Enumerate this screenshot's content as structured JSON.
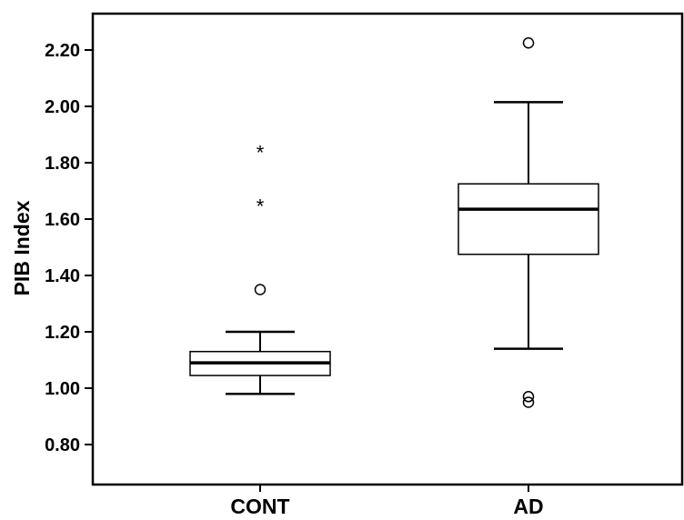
{
  "chart_data": {
    "type": "boxplot",
    "title": "",
    "xlabel": "",
    "ylabel": "PIB Index",
    "ylim": [
      0.7,
      2.3
    ],
    "yticks": [
      0.8,
      1.0,
      1.2,
      1.4,
      1.6,
      1.8,
      2.0,
      2.2
    ],
    "ytick_labels": [
      "0.80",
      "1.00",
      "1.20",
      "1.40",
      "1.60",
      "1.80",
      "2.00",
      "2.20"
    ],
    "categories": [
      "CONT",
      "AD"
    ],
    "boxes": [
      {
        "category": "CONT",
        "whisker_low": 0.98,
        "q1": 1.045,
        "median": 1.09,
        "q3": 1.13,
        "whisker_high": 1.2,
        "outliers": [
          1.35
        ],
        "extremes": [
          1.65,
          1.84
        ]
      },
      {
        "category": "AD",
        "whisker_low": 1.14,
        "q1": 1.475,
        "median": 1.635,
        "q3": 1.725,
        "whisker_high": 2.015,
        "outliers": [
          0.95,
          0.97,
          2.225
        ],
        "extremes": []
      }
    ],
    "grid": false,
    "legend": "none",
    "colors": {
      "box_fill": "#ffffff",
      "stroke": "#000000",
      "background": "#ffffff"
    }
  }
}
